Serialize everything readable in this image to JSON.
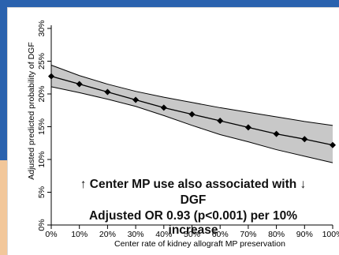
{
  "chart_data": {
    "type": "line",
    "title": "",
    "xlabel": "Center rate of kidney allograft MP preservation",
    "ylabel": "Adjusted predicted probability of DGF",
    "x": [
      0,
      10,
      20,
      30,
      40,
      50,
      60,
      70,
      80,
      90,
      100
    ],
    "x_tick_labels": [
      "0%",
      "10%",
      "20%",
      "30%",
      "40%",
      "50%",
      "60%",
      "70%",
      "80%",
      "90%",
      "100%"
    ],
    "y_ticks": [
      0,
      5,
      10,
      15,
      20,
      25,
      30
    ],
    "y_tick_labels": [
      "0%",
      "5%",
      "10%",
      "15%",
      "20%",
      "25%",
      "30%"
    ],
    "xlim": [
      0,
      100
    ],
    "ylim": [
      0,
      30
    ],
    "series": [
      {
        "values": [
          22.7,
          21.5,
          20.3,
          19.1,
          17.9,
          16.9,
          15.9,
          14.9,
          13.9,
          13.1,
          12.2
        ],
        "ci_upper": [
          24.4,
          22.8,
          21.5,
          20.4,
          19.5,
          18.7,
          17.9,
          17.2,
          16.5,
          15.8,
          15.2
        ],
        "ci_lower": [
          21.1,
          20.2,
          19.2,
          18.1,
          16.7,
          15.2,
          13.8,
          12.7,
          11.5,
          10.5,
          9.5
        ],
        "color": "#000000",
        "band_color": "#c8c8c8"
      }
    ],
    "grid": false,
    "legend": "none"
  },
  "annotation": {
    "line1": "↑ Center MP use also associated with ↓",
    "line2": "DGF",
    "line3": "Adjusted OR 0.93 (p<0.001) per 10%",
    "line4": "increase"
  }
}
